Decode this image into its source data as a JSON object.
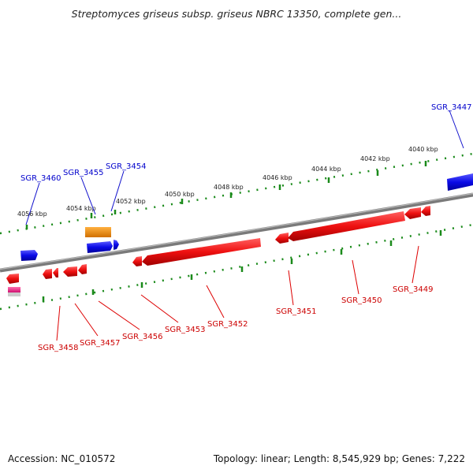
{
  "header": {
    "title": "Streptomyces griseus subsp. griseus NBRC 13350, complete gen..."
  },
  "footer": {
    "accession": "Accession: NC_010572",
    "summary": "Topology: linear; Length: 8,545,929 bp; Genes: 7,222"
  },
  "scale_labels": [
    "4056 kbp",
    "4054 kbp",
    "4052 kbp",
    "4050 kbp",
    "4048 kbp",
    "4046 kbp",
    "4044 kbp",
    "4042 kbp",
    "4040 kbp"
  ],
  "genes_top": [
    {
      "label": "SGR_3460",
      "color": "#0000cc"
    },
    {
      "label": "SGR_3455",
      "color": "#0000cc"
    },
    {
      "label": "SGR_3454",
      "color": "#0000cc"
    },
    {
      "label": "SGR_3447",
      "color": "#0000cc"
    }
  ],
  "genes_bottom": [
    {
      "label": "SGR_3458",
      "color": "#cc0000"
    },
    {
      "label": "SGR_3457",
      "color": "#cc0000"
    },
    {
      "label": "SGR_3456",
      "color": "#cc0000"
    },
    {
      "label": "SGR_3453",
      "color": "#cc0000"
    },
    {
      "label": "SGR_3452",
      "color": "#cc0000"
    },
    {
      "label": "SGR_3451",
      "color": "#cc0000"
    },
    {
      "label": "SGR_3450",
      "color": "#cc0000"
    },
    {
      "label": "SGR_3449",
      "color": "#cc0000"
    }
  ],
  "colors": {
    "forward_gene": "#1010e0",
    "reverse_gene": "#ee1111",
    "rna_gene": "#f08c00",
    "backbone": "#808080",
    "ticks": "#1a8a1a"
  }
}
